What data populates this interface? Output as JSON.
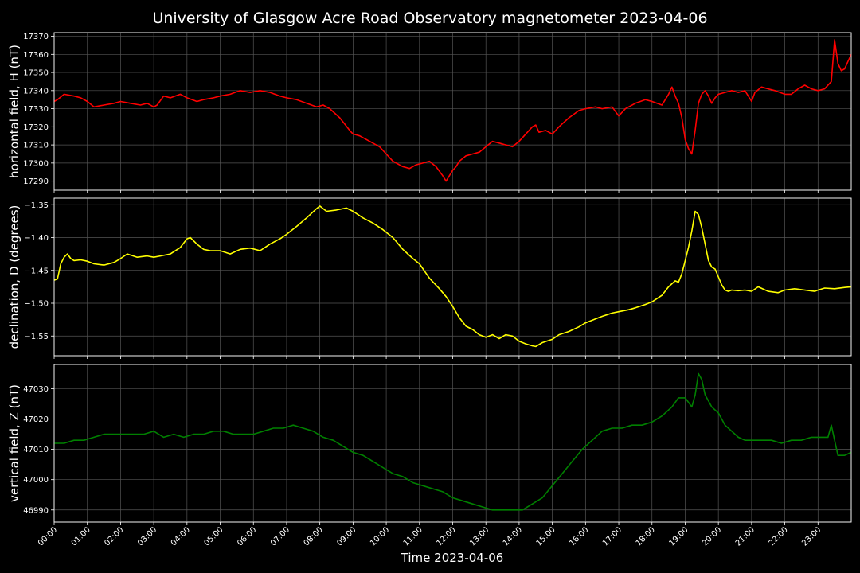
{
  "chart_data": {
    "type": "line",
    "title": "University of Glasgow Acre Road Observatory magnetometer 2023-04-06",
    "xlabel": "Time 2023-04-06",
    "x_ticks": [
      "00:00",
      "01:00",
      "02:00",
      "03:00",
      "04:00",
      "05:00",
      "06:00",
      "07:00",
      "08:00",
      "09:00",
      "10:00",
      "11:00",
      "12:00",
      "13:00",
      "14:00",
      "15:00",
      "16:00",
      "17:00",
      "18:00",
      "19:00",
      "20:00",
      "21:00",
      "22:00",
      "23:00"
    ],
    "xlim_hours": [
      0,
      24
    ],
    "grid": true,
    "panels": [
      {
        "name": "H",
        "ylabel": "horizontal field, H (nT)",
        "color": "#ff0000",
        "ylim": [
          17285,
          17372
        ],
        "yticks": [
          17290,
          17300,
          17310,
          17320,
          17330,
          17340,
          17350,
          17360,
          17370
        ],
        "ytick_labels": [
          "17290",
          "17300",
          "17310",
          "17320",
          "17330",
          "17340",
          "17350",
          "17360",
          "17370"
        ],
        "x": [
          0,
          0.1,
          0.3,
          0.6,
          0.8,
          1.0,
          1.2,
          1.5,
          1.8,
          2.0,
          2.3,
          2.6,
          2.8,
          3.0,
          3.1,
          3.3,
          3.5,
          3.8,
          4.0,
          4.3,
          4.5,
          4.8,
          5.0,
          5.3,
          5.6,
          5.9,
          6.2,
          6.5,
          6.8,
          7.0,
          7.3,
          7.6,
          7.9,
          8.1,
          8.3,
          8.6,
          8.9,
          9.0,
          9.2,
          9.5,
          9.8,
          10.0,
          10.2,
          10.5,
          10.7,
          10.9,
          11.1,
          11.3,
          11.5,
          11.7,
          11.8,
          12.0,
          12.1,
          12.2,
          12.4,
          12.6,
          12.8,
          13.0,
          13.2,
          13.4,
          13.6,
          13.8,
          14.0,
          14.2,
          14.4,
          14.5,
          14.6,
          14.8,
          15.0,
          15.2,
          15.5,
          15.8,
          16.0,
          16.3,
          16.5,
          16.8,
          17.0,
          17.2,
          17.5,
          17.8,
          18.0,
          18.3,
          18.5,
          18.6,
          18.7,
          18.8,
          18.9,
          19.0,
          19.1,
          19.2,
          19.3,
          19.4,
          19.5,
          19.6,
          19.7,
          19.8,
          19.9,
          20.0,
          20.2,
          20.4,
          20.6,
          20.8,
          21.0,
          21.1,
          21.3,
          21.5,
          21.7,
          22.0,
          22.2,
          22.4,
          22.6,
          22.8,
          23.0,
          23.2,
          23.4,
          23.5,
          23.6,
          23.7,
          23.8,
          23.9,
          24.0
        ],
        "values": [
          17334,
          17335,
          17338,
          17337,
          17336,
          17334,
          17331,
          17332,
          17333,
          17334,
          17333,
          17332,
          17333,
          17331,
          17332,
          17337,
          17336,
          17338,
          17336,
          17334,
          17335,
          17336,
          17337,
          17338,
          17340,
          17339,
          17340,
          17339,
          17337,
          17336,
          17335,
          17333,
          17331,
          17332,
          17330,
          17325,
          17318,
          17316,
          17315,
          17312,
          17309,
          17305,
          17301,
          17298,
          17297,
          17299,
          17300,
          17301,
          17298,
          17293,
          17290,
          17296,
          17298,
          17301,
          17304,
          17305,
          17306,
          17309,
          17312,
          17311,
          17310,
          17309,
          17312,
          17316,
          17320,
          17321,
          17317,
          17318,
          17316,
          17320,
          17325,
          17329,
          17330,
          17331,
          17330,
          17331,
          17326,
          17330,
          17333,
          17335,
          17334,
          17332,
          17338,
          17342,
          17337,
          17333,
          17325,
          17313,
          17308,
          17305,
          17318,
          17333,
          17338,
          17340,
          17337,
          17333,
          17336,
          17338,
          17339,
          17340,
          17339,
          17340,
          17334,
          17339,
          17342,
          17341,
          17340,
          17338,
          17338,
          17341,
          17343,
          17341,
          17340,
          17341,
          17345,
          17368,
          17355,
          17351,
          17352,
          17356,
          17360
        ]
      },
      {
        "name": "D",
        "ylabel": "declination, D (degrees)",
        "color": "#ffff00",
        "ylim": [
          -1.58,
          -1.34
        ],
        "yticks": [
          -1.55,
          -1.5,
          -1.45,
          -1.4,
          -1.35
        ],
        "ytick_labels": [
          "−1.55",
          "−1.50",
          "−1.45",
          "−1.40",
          "−1.35"
        ],
        "x": [
          0,
          0.1,
          0.2,
          0.3,
          0.4,
          0.5,
          0.6,
          0.8,
          1.0,
          1.2,
          1.5,
          1.8,
          2.0,
          2.2,
          2.5,
          2.8,
          3.0,
          3.2,
          3.5,
          3.8,
          4.0,
          4.1,
          4.3,
          4.5,
          4.7,
          5.0,
          5.3,
          5.6,
          5.9,
          6.2,
          6.5,
          6.8,
          7.0,
          7.3,
          7.6,
          7.9,
          8.0,
          8.2,
          8.5,
          8.8,
          9.0,
          9.3,
          9.6,
          9.9,
          10.2,
          10.5,
          10.8,
          11.0,
          11.3,
          11.6,
          11.8,
          12.0,
          12.2,
          12.4,
          12.6,
          12.8,
          13.0,
          13.2,
          13.4,
          13.6,
          13.8,
          14.0,
          14.2,
          14.4,
          14.5,
          14.7,
          15.0,
          15.2,
          15.5,
          15.8,
          16.0,
          16.3,
          16.5,
          16.8,
          17.0,
          17.3,
          17.5,
          17.8,
          18.0,
          18.3,
          18.5,
          18.7,
          18.8,
          18.9,
          19.0,
          19.1,
          19.2,
          19.3,
          19.4,
          19.5,
          19.6,
          19.7,
          19.8,
          19.9,
          20.0,
          20.1,
          20.2,
          20.3,
          20.4,
          20.6,
          20.8,
          21.0,
          21.2,
          21.5,
          21.8,
          22.0,
          22.3,
          22.6,
          22.9,
          23.0,
          23.2,
          23.5,
          23.8,
          24.0
        ],
        "values": [
          -1.465,
          -1.463,
          -1.44,
          -1.43,
          -1.425,
          -1.432,
          -1.435,
          -1.434,
          -1.436,
          -1.44,
          -1.442,
          -1.438,
          -1.432,
          -1.425,
          -1.43,
          -1.428,
          -1.43,
          -1.428,
          -1.425,
          -1.415,
          -1.402,
          -1.4,
          -1.41,
          -1.418,
          -1.42,
          -1.42,
          -1.425,
          -1.418,
          -1.416,
          -1.42,
          -1.41,
          -1.402,
          -1.395,
          -1.383,
          -1.37,
          -1.356,
          -1.352,
          -1.36,
          -1.358,
          -1.355,
          -1.36,
          -1.37,
          -1.378,
          -1.388,
          -1.4,
          -1.418,
          -1.432,
          -1.44,
          -1.462,
          -1.478,
          -1.49,
          -1.505,
          -1.522,
          -1.535,
          -1.54,
          -1.548,
          -1.552,
          -1.548,
          -1.554,
          -1.548,
          -1.55,
          -1.558,
          -1.562,
          -1.565,
          -1.566,
          -1.56,
          -1.555,
          -1.548,
          -1.543,
          -1.536,
          -1.53,
          -1.524,
          -1.52,
          -1.515,
          -1.513,
          -1.51,
          -1.507,
          -1.502,
          -1.498,
          -1.488,
          -1.475,
          -1.466,
          -1.468,
          -1.455,
          -1.435,
          -1.415,
          -1.39,
          -1.36,
          -1.365,
          -1.385,
          -1.41,
          -1.435,
          -1.445,
          -1.448,
          -1.46,
          -1.472,
          -1.48,
          -1.482,
          -1.48,
          -1.481,
          -1.48,
          -1.482,
          -1.475,
          -1.482,
          -1.484,
          -1.48,
          -1.478,
          -1.48,
          -1.482,
          -1.48,
          -1.477,
          -1.478,
          -1.476,
          -1.475
        ]
      },
      {
        "name": "Z",
        "ylabel": "vertical field, Z (nT)",
        "color": "#008000",
        "ylim": [
          46986,
          47038
        ],
        "yticks": [
          46990,
          47000,
          47010,
          47020,
          47030
        ],
        "ytick_labels": [
          "46990",
          "47000",
          "47010",
          "47020",
          "47030"
        ],
        "x": [
          0,
          0.3,
          0.6,
          0.9,
          1.2,
          1.5,
          1.8,
          2.1,
          2.4,
          2.7,
          3.0,
          3.3,
          3.6,
          3.9,
          4.2,
          4.5,
          4.8,
          5.1,
          5.4,
          5.7,
          6.0,
          6.3,
          6.6,
          6.9,
          7.2,
          7.5,
          7.8,
          8.1,
          8.4,
          8.7,
          9.0,
          9.3,
          9.6,
          9.9,
          10.2,
          10.5,
          10.8,
          11.1,
          11.4,
          11.7,
          12.0,
          12.3,
          12.6,
          12.9,
          13.2,
          13.5,
          13.8,
          14.1,
          14.4,
          14.7,
          15.0,
          15.3,
          15.6,
          15.9,
          16.2,
          16.5,
          16.8,
          17.1,
          17.4,
          17.7,
          18.0,
          18.3,
          18.6,
          18.8,
          19.0,
          19.2,
          19.3,
          19.4,
          19.5,
          19.6,
          19.8,
          20.0,
          20.2,
          20.4,
          20.6,
          20.8,
          21.0,
          21.3,
          21.6,
          21.9,
          22.2,
          22.5,
          22.8,
          23.1,
          23.3,
          23.4,
          23.5,
          23.6,
          23.8,
          24.0
        ],
        "values": [
          47012,
          47012,
          47013,
          47013,
          47014,
          47015,
          47015,
          47015,
          47015,
          47015,
          47016,
          47014,
          47015,
          47014,
          47015,
          47015,
          47016,
          47016,
          47015,
          47015,
          47015,
          47016,
          47017,
          47017,
          47018,
          47017,
          47016,
          47014,
          47013,
          47011,
          47009,
          47008,
          47006,
          47004,
          47002,
          47001,
          46999,
          46998,
          46997,
          46996,
          46994,
          46993,
          46992,
          46991,
          46990,
          46990,
          46990,
          46990,
          46992,
          46994,
          46998,
          47002,
          47006,
          47010,
          47013,
          47016,
          47017,
          47017,
          47018,
          47018,
          47019,
          47021,
          47024,
          47027,
          47027,
          47024,
          47028,
          47035,
          47033,
          47028,
          47024,
          47022,
          47018,
          47016,
          47014,
          47013,
          47013,
          47013,
          47013,
          47012,
          47013,
          47013,
          47014,
          47014,
          47014,
          47018,
          47013,
          47008,
          47008,
          47009
        ]
      }
    ]
  }
}
